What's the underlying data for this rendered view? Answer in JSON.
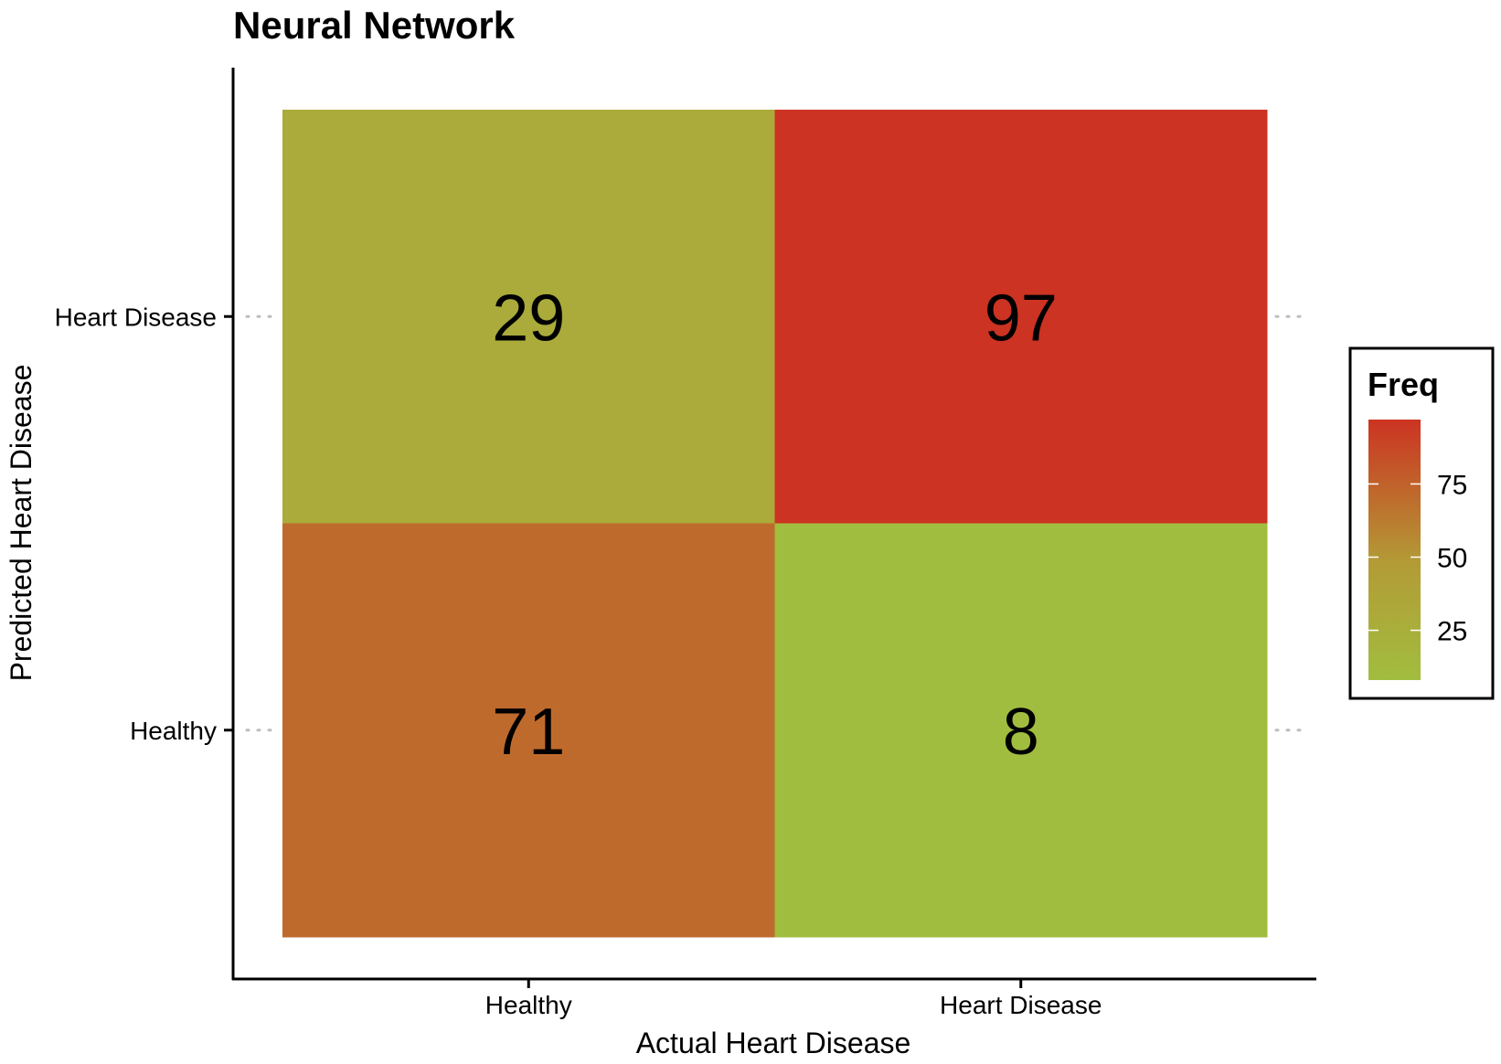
{
  "chart_data": {
    "type": "heatmap",
    "title": "Neural Network",
    "xlabel": "Actual Heart Disease",
    "ylabel": "Predicted Heart Disease",
    "x_categories": [
      "Healthy",
      "Heart Disease"
    ],
    "y_categories": [
      "Healthy",
      "Heart Disease"
    ],
    "cells": [
      {
        "x": "Healthy",
        "y": "Heart Disease",
        "value": 29
      },
      {
        "x": "Heart Disease",
        "y": "Heart Disease",
        "value": 97
      },
      {
        "x": "Healthy",
        "y": "Healthy",
        "value": 71
      },
      {
        "x": "Heart Disease",
        "y": "Healthy",
        "value": 8
      }
    ],
    "legend": {
      "title": "Freq",
      "ticks": [
        25,
        50,
        75
      ],
      "range": [
        8,
        97
      ],
      "low_color": "#A1BD3F",
      "mid_color": "#B39B36",
      "high_color": "#CC3322",
      "position": "right"
    },
    "grid": false
  }
}
